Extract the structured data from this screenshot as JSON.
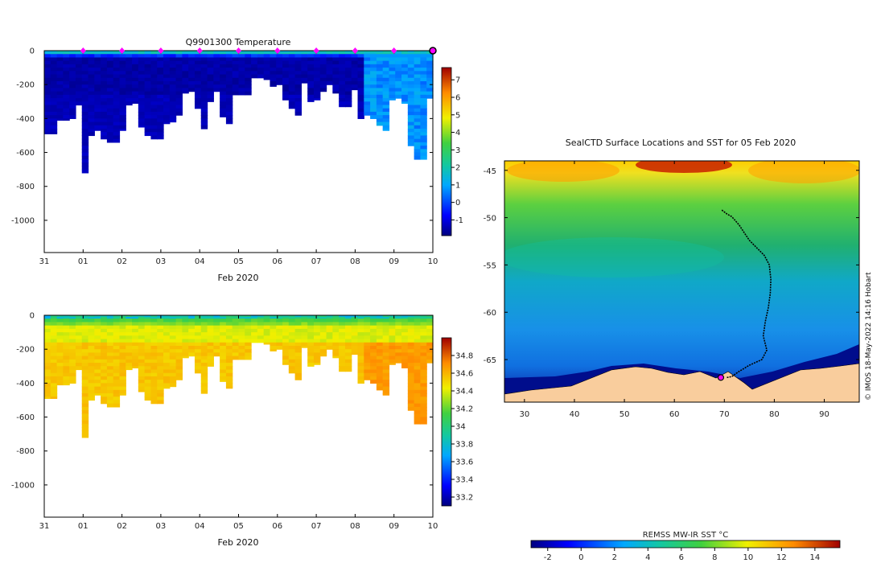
{
  "chart_data": [
    {
      "type": "heatmap",
      "title": "Q9901300  Temperature",
      "xlabel": "Feb 2020",
      "ylabel": "",
      "x_tick_labels": [
        "31",
        "01",
        "02",
        "03",
        "04",
        "05",
        "06",
        "07",
        "08",
        "09",
        "10"
      ],
      "y_ticks": [
        0,
        -200,
        -400,
        -600,
        -800,
        -1000
      ],
      "ylim": [
        -1190,
        0
      ],
      "colorbar_ticks": [
        -1,
        0,
        1,
        2,
        3,
        4,
        5,
        6,
        7
      ],
      "colorbar_range": [
        -1.9,
        7.7
      ],
      "profile_depths": [
        -490,
        -490,
        -410,
        -410,
        -400,
        -320,
        -720,
        -500,
        -470,
        -520,
        -540,
        -540,
        -470,
        -320,
        -310,
        -450,
        -500,
        -520,
        -520,
        -430,
        -420,
        -380,
        -250,
        -240,
        -340,
        -460,
        -300,
        -240,
        -390,
        -430,
        -260,
        -260,
        -260,
        -160,
        -160,
        -170,
        -210,
        -200,
        -290,
        -340,
        -380,
        -190,
        -300,
        -290,
        -240,
        -200,
        -250,
        -330,
        -330,
        -230,
        -400,
        -380,
        -400,
        -440,
        -470,
        -290,
        -280,
        -310,
        -560,
        -640,
        -640,
        -280
      ],
      "surface_markers_x_days": [
        1,
        2,
        3,
        4,
        5,
        6,
        7,
        8,
        9
      ],
      "highlight_marker_x_days": 10
    },
    {
      "type": "heatmap",
      "title": "",
      "xlabel": "Feb 2020",
      "ylabel": "",
      "x_tick_labels": [
        "31",
        "01",
        "02",
        "03",
        "04",
        "05",
        "06",
        "07",
        "08",
        "09",
        "10"
      ],
      "y_ticks": [
        0,
        -200,
        -400,
        -600,
        -800,
        -1000
      ],
      "ylim": [
        -1190,
        0
      ],
      "colorbar_ticks": [
        33.2,
        33.4,
        33.6,
        33.8,
        34,
        34.2,
        34.4,
        34.6,
        34.8
      ],
      "colorbar_tick_labels": [
        "33.2",
        "33.4",
        "33.6",
        "33.8",
        "34",
        "34.2",
        "34.4",
        "34.6",
        "34.8"
      ],
      "colorbar_range": [
        33.1,
        35.0
      ]
    },
    {
      "type": "heatmap",
      "title": "SealCTD Surface Locations and SST for 05 Feb 2020",
      "x_ticks": [
        30,
        40,
        50,
        60,
        70,
        80,
        90
      ],
      "y_ticks": [
        -45,
        -50,
        -55,
        -60,
        -65
      ],
      "xlim": [
        26,
        97
      ],
      "ylim": [
        -69.5,
        -44
      ],
      "track": [
        [
          69.5,
          -49.2
        ],
        [
          70.5,
          -49.6
        ],
        [
          71.5,
          -49.9
        ],
        [
          72,
          -50.2
        ],
        [
          73,
          -50.8
        ],
        [
          74,
          -51.6
        ],
        [
          75,
          -52.4
        ],
        [
          76.5,
          -53.2
        ],
        [
          78,
          -54
        ],
        [
          79,
          -55
        ],
        [
          79.3,
          -56.5
        ],
        [
          79.2,
          -58
        ],
        [
          78.8,
          -59.5
        ],
        [
          78.2,
          -61
        ],
        [
          77.8,
          -62.5
        ],
        [
          78.5,
          -64
        ],
        [
          77.5,
          -65
        ],
        [
          75,
          -65.6
        ],
        [
          72.8,
          -66.3
        ],
        [
          71.5,
          -66.8
        ],
        [
          70.5,
          -66.9
        ]
      ],
      "start_marker": [
        69.3,
        -66.9
      ],
      "colorbar_label": "REMSS MW-IR SST °C",
      "colorbar_ticks": [
        -2,
        0,
        2,
        4,
        6,
        8,
        10,
        12,
        14
      ],
      "colorbar_range": [
        -3,
        15.5
      ],
      "credit": "© IMOS 18-May-2022 14:16 Hobart"
    }
  ]
}
